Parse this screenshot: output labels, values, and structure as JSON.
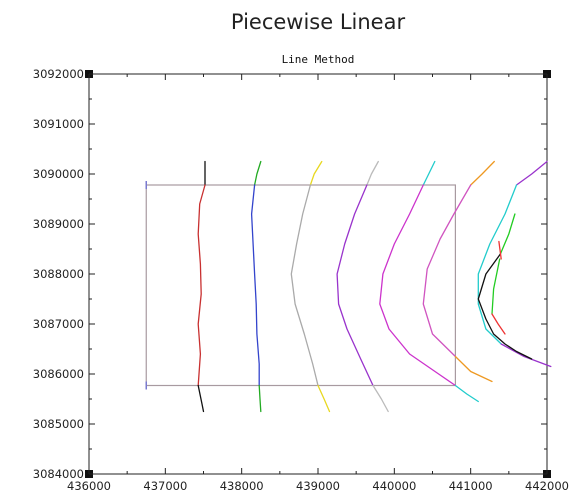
{
  "chart_data": {
    "type": "line",
    "title": "Piecewise Linear",
    "subtitle": "Line Method",
    "xlabel": "",
    "ylabel": "",
    "xlim": [
      436000,
      442000
    ],
    "ylim": [
      3084000,
      3092000
    ],
    "x_ticks": [
      436000,
      437000,
      438000,
      439000,
      440000,
      441000,
      442000
    ],
    "y_ticks": [
      3084000,
      3085000,
      3086000,
      3087000,
      3088000,
      3089000,
      3090000,
      3091000,
      3092000
    ],
    "x_tick_labels": [
      "436000",
      "437000",
      "438000",
      "439000",
      "440000",
      "441000",
      "442000"
    ],
    "y_tick_labels": [
      "3084000",
      "3085000",
      "3086000",
      "3087000",
      "3088000",
      "3089000",
      "3090000",
      "3091000",
      "3092000"
    ],
    "grid": false,
    "legend": "none",
    "box": {
      "x": [
        436750,
        440800
      ],
      "y": [
        3085770,
        3089780
      ],
      "color": "#a89aa0"
    },
    "series": [
      {
        "color": "#111111",
        "x": [
          437520,
          437520
        ],
        "y": [
          3090250,
          3089780
        ]
      },
      {
        "color": "#c83030",
        "x": [
          437520,
          437450,
          437430,
          437460,
          437470,
          437430,
          437460,
          437430
        ],
        "y": [
          3089780,
          3089400,
          3088800,
          3088200,
          3087600,
          3087000,
          3086400,
          3085770
        ]
      },
      {
        "color": "#111111",
        "x": [
          437430,
          437480,
          437500
        ],
        "y": [
          3085770,
          3085400,
          3085250
        ]
      },
      {
        "color": "#22aa22",
        "x": [
          438250,
          438200,
          438170
        ],
        "y": [
          3090250,
          3090000,
          3089780
        ]
      },
      {
        "color": "#3344cc",
        "x": [
          438170,
          438130,
          438150,
          438170,
          438190,
          438200,
          438230,
          438230
        ],
        "y": [
          3089780,
          3089200,
          3088600,
          3088000,
          3087400,
          3086800,
          3086200,
          3085770
        ]
      },
      {
        "color": "#22aa22",
        "x": [
          438230,
          438240,
          438250
        ],
        "y": [
          3085770,
          3085500,
          3085250
        ]
      },
      {
        "color": "#e8d820",
        "x": [
          439050,
          438950,
          438900
        ],
        "y": [
          3090250,
          3090000,
          3089780
        ]
      },
      {
        "color": "#aaaaaa",
        "x": [
          438900,
          438800,
          438720,
          438650,
          438700,
          438820,
          438930,
          439000
        ],
        "y": [
          3089780,
          3089200,
          3088600,
          3088000,
          3087400,
          3086800,
          3086200,
          3085770
        ]
      },
      {
        "color": "#e8d820",
        "x": [
          439000,
          439080,
          439150
        ],
        "y": [
          3085770,
          3085500,
          3085250
        ]
      },
      {
        "color": "#bbbbbb",
        "x": [
          439790,
          439700,
          439640
        ],
        "y": [
          3090250,
          3090000,
          3089780
        ]
      },
      {
        "color": "#9933cc",
        "x": [
          439640,
          439480,
          439350,
          439250,
          439270,
          439380,
          439560,
          439720
        ],
        "y": [
          3089780,
          3089200,
          3088600,
          3088000,
          3087400,
          3086900,
          3086300,
          3085770
        ]
      },
      {
        "color": "#bbbbbb",
        "x": [
          439720,
          439830,
          439920
        ],
        "y": [
          3085770,
          3085500,
          3085250
        ]
      },
      {
        "color": "#22cccc",
        "x": [
          440530,
          440450,
          440380
        ],
        "y": [
          3090250,
          3090000,
          3089780
        ]
      },
      {
        "color": "#cc33cc",
        "x": [
          440380,
          440200,
          440000,
          439850,
          439810,
          439930,
          440200,
          440600,
          440800
        ],
        "y": [
          3089780,
          3089200,
          3088600,
          3088000,
          3087400,
          3086900,
          3086400,
          3085980,
          3085770
        ]
      },
      {
        "color": "#22cccc",
        "x": [
          440800,
          440950,
          441100
        ],
        "y": [
          3085770,
          3085600,
          3085450
        ]
      },
      {
        "color": "#ee9922",
        "x": [
          441310,
          441150,
          441000
        ],
        "y": [
          3090250,
          3090000,
          3089780
        ]
      },
      {
        "color": "#d055c0",
        "x": [
          441000,
          440780,
          440600,
          440430,
          440380,
          440500,
          440800
        ],
        "y": [
          3089780,
          3089200,
          3088700,
          3088100,
          3087400,
          3086800,
          3086350
        ]
      },
      {
        "color": "#ee9922",
        "x": [
          440800,
          441000,
          441280
        ],
        "y": [
          3086350,
          3086050,
          3085850
        ]
      },
      {
        "color": "#9933cc",
        "x": [
          442000,
          441800,
          441600
        ],
        "y": [
          3090250,
          3090000,
          3089780
        ]
      },
      {
        "color": "#22cccc",
        "x": [
          441600,
          441450,
          441250,
          441100,
          441100,
          441200,
          441400
        ],
        "y": [
          3089780,
          3089200,
          3088600,
          3088000,
          3087400,
          3086900,
          3086600
        ]
      },
      {
        "color": "#9933cc",
        "x": [
          441400,
          441700,
          442050
        ],
        "y": [
          3086600,
          3086350,
          3086150
        ]
      },
      {
        "color": "#22cc22",
        "x": [
          441580,
          441500,
          441390
        ],
        "y": [
          3089200,
          3088800,
          3088400
        ]
      },
      {
        "color": "#111111",
        "x": [
          441390,
          441200,
          441100,
          441200,
          441300,
          441450,
          441600,
          441800
        ],
        "y": [
          3088400,
          3088000,
          3087500,
          3087100,
          3086800,
          3086600,
          3086450,
          3086300
        ]
      },
      {
        "color": "#22cc22",
        "x": [
          441380,
          441300,
          441280
        ],
        "y": [
          3088300,
          3087700,
          3087200
        ]
      },
      {
        "color": "#ee3333",
        "x": [
          441280,
          441360,
          441450
        ],
        "y": [
          3087200,
          3087000,
          3086800
        ]
      },
      {
        "color": "#ee3333",
        "x": [
          441370,
          441400
        ],
        "y": [
          3088650,
          3088300
        ]
      }
    ]
  }
}
